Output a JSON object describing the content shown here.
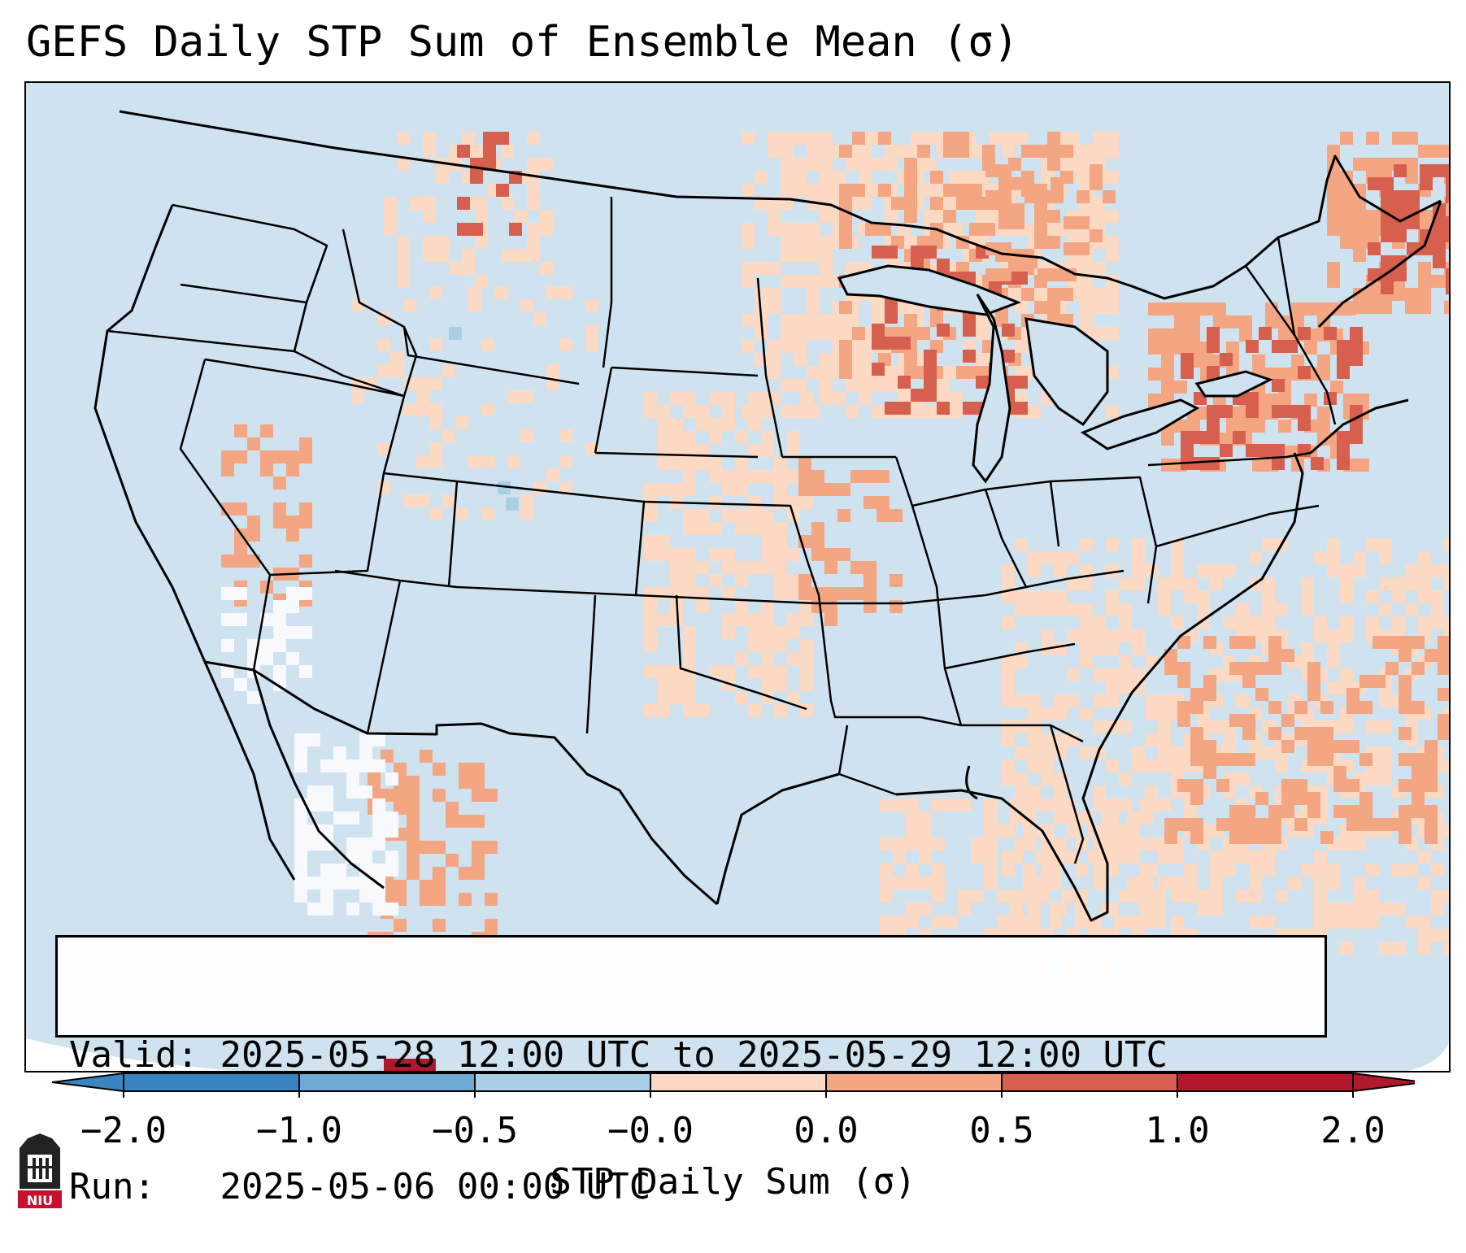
{
  "title": "GEFS Daily STP Sum of Ensemble Mean (σ)",
  "info": {
    "valid_label": "Valid:",
    "valid_value": "2025-05-28 12:00 UTC to 2025-05-29 12:00 UTC",
    "run_label": "Run:",
    "run_value": "2025-05-06 00:00 UTC"
  },
  "colorbar": {
    "label": "STP Daily Sum (σ)",
    "ticks": [
      "−2.0",
      "−1.0",
      "−0.5",
      "−0.0",
      "0.0",
      "0.5",
      "1.0",
      "2.0"
    ],
    "colors": [
      "#3a84c1",
      "#6fa9d6",
      "#a9cfe6",
      "#f7f9fc",
      "#fbd9c3",
      "#f4a582",
      "#d6604d",
      "#b2182b"
    ],
    "extend": "both"
  },
  "map": {
    "ocean_color": "#cfe2ef",
    "boundary_color": "#000000",
    "logo_text": "NIU"
  }
}
